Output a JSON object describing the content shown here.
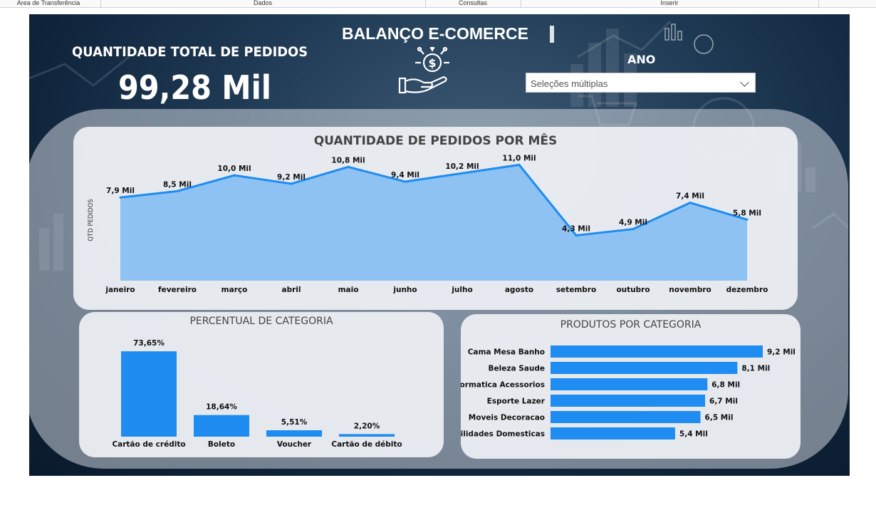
{
  "ribbon": {
    "sections": [
      "Área de Transferência",
      "Dados",
      "Consultas",
      "Inserir"
    ]
  },
  "report": {
    "title": "BALANÇO E-COMERCE",
    "kpi_label": "QUANTIDADE TOTAL DE PEDIDOS",
    "kpi_value": "99,28 Mil",
    "year_filter": {
      "label": "ANO",
      "placeholder": "Seleções múltiplas"
    },
    "icons": [
      "money-hand-icon",
      "chevron-down-icon"
    ]
  },
  "colors": {
    "accent": "#1e8cf0",
    "area_fill": "#8ec2f2",
    "background": "#1a3350",
    "panel": "#eef0f4",
    "title_text": "#444444"
  },
  "chart_data": [
    {
      "type": "area",
      "title": "QUANTIDADE DE PEDIDOS POR MÊS",
      "xlabel": "",
      "ylabel": "QTD PEDIDOS",
      "categories": [
        "janeiro",
        "fevereiro",
        "março",
        "abril",
        "maio",
        "junho",
        "julho",
        "agosto",
        "setembro",
        "outubro",
        "novembro",
        "dezembro"
      ],
      "values": [
        7.9,
        8.5,
        10.0,
        9.2,
        10.8,
        9.4,
        10.2,
        11.0,
        4.3,
        4.9,
        7.4,
        5.8
      ],
      "data_labels": [
        "7,9 Mil",
        "8,5 Mil",
        "10,0 Mil",
        "9,2 Mil",
        "10,8 Mil",
        "9,4 Mil",
        "10,2 Mil",
        "11,0 Mil",
        "4,3 Mil",
        "4,9 Mil",
        "7,4 Mil",
        "5,8 Mil"
      ],
      "ylim": [
        0,
        11.5
      ],
      "grid": false,
      "legend": "none"
    },
    {
      "type": "bar",
      "title": "PERCENTUAL DE CATEGORIA",
      "categories": [
        "Cartão de crédito",
        "Boleto",
        "Voucher",
        "Cartão de débito"
      ],
      "values": [
        73.65,
        18.64,
        5.51,
        2.2
      ],
      "data_labels": [
        "73,65%",
        "18,64%",
        "5,51%",
        "2,20%"
      ],
      "ylim": [
        0,
        75
      ],
      "grid": false,
      "legend": "none"
    },
    {
      "type": "bar",
      "orientation": "horizontal",
      "title": "PRODUTOS POR CATEGORIA",
      "categories": [
        "Cama Mesa Banho",
        "Beleza Saude",
        "Informatica Acessorios",
        "Esporte Lazer",
        "Moveis Decoracao",
        "Utilidades Domesticas"
      ],
      "values": [
        9.2,
        8.1,
        6.8,
        6.7,
        6.5,
        5.4
      ],
      "data_labels": [
        "9,2 Mil",
        "8,1 Mil",
        "6,8 Mil",
        "6,7 Mil",
        "6,5 Mil",
        "5,4 Mil"
      ],
      "xlim": [
        0,
        9.2
      ],
      "grid": false,
      "legend": "none"
    }
  ]
}
